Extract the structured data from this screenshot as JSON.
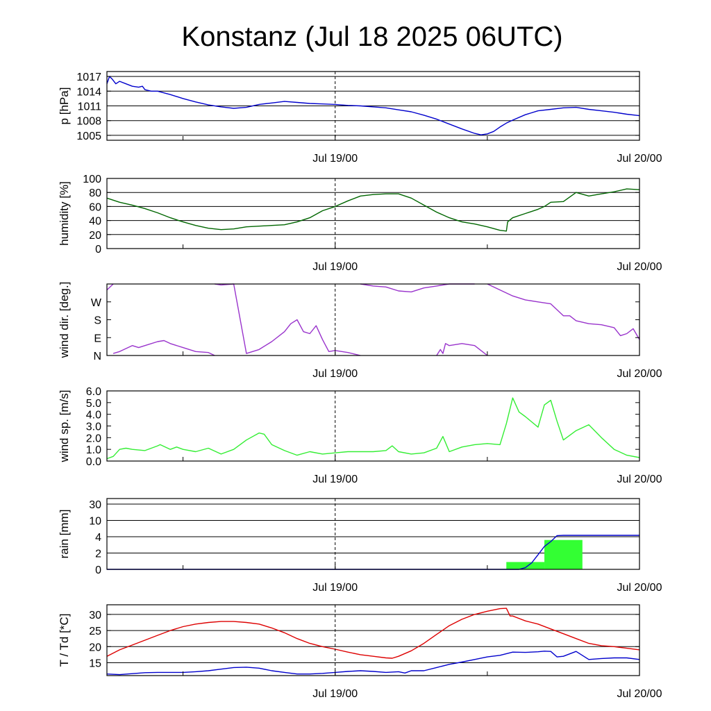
{
  "title": "Konstanz (Jul 18 2025 06UTC)",
  "chart_data": [
    {
      "type": "line",
      "ylabel": "p [hPa]",
      "x_range": [
        0,
        42
      ],
      "x_ticks": [
        {
          "x": 18,
          "label": "Jul 19/00"
        },
        {
          "x": 42,
          "label": "Jul 20/00"
        }
      ],
      "minor_x_ticks": [
        6,
        30
      ],
      "divider_x": 18,
      "ylim": [
        1004,
        1018
      ],
      "y_ticks": [
        1005,
        1008,
        1011,
        1014,
        1017
      ],
      "grid": true,
      "series": [
        {
          "color": "#0000cc",
          "x": [
            0,
            0.2,
            0.4,
            0.7,
            1,
            1.5,
            2,
            2.5,
            2.8,
            3,
            3.5,
            4,
            5,
            6,
            7,
            8,
            9,
            10,
            11,
            12,
            13,
            14,
            15,
            16,
            17,
            18,
            19,
            20,
            21,
            22,
            23,
            24,
            25,
            26,
            27,
            28,
            29,
            29.5,
            30,
            30.5,
            31,
            31.5,
            32,
            33,
            34,
            35,
            36,
            37,
            38,
            39,
            40,
            41,
            42
          ],
          "values": [
            1015.5,
            1017,
            1016.5,
            1015.5,
            1016,
            1015.5,
            1015,
            1014.8,
            1015,
            1014.3,
            1014,
            1014,
            1013.3,
            1012.5,
            1011.8,
            1011.2,
            1010.8,
            1010.5,
            1010.7,
            1011.3,
            1011.6,
            1011.9,
            1011.7,
            1011.5,
            1011.4,
            1011.3,
            1011.1,
            1011,
            1010.8,
            1010.6,
            1010.2,
            1009.8,
            1009.1,
            1008.3,
            1007.3,
            1006.3,
            1005.4,
            1005.1,
            1005.3,
            1005.8,
            1006.7,
            1007.5,
            1008.1,
            1009.2,
            1010,
            1010.3,
            1010.6,
            1010.7,
            1010.3,
            1010,
            1009.7,
            1009.3,
            1009.0
          ]
        }
      ]
    },
    {
      "type": "line",
      "ylabel": "humidity [%]",
      "x_range": [
        0,
        42
      ],
      "x_ticks": [
        {
          "x": 18,
          "label": "Jul 19/00"
        },
        {
          "x": 42,
          "label": "Jul 20/00"
        }
      ],
      "minor_x_ticks": [
        6,
        30
      ],
      "divider_x": 18,
      "ylim": [
        0,
        100
      ],
      "y_ticks": [
        0,
        20,
        40,
        60,
        80,
        100
      ],
      "grid": true,
      "series": [
        {
          "color": "#006600",
          "x": [
            0,
            1,
            2,
            3,
            4,
            5,
            6,
            7,
            8,
            9,
            10,
            11,
            12,
            13,
            14,
            15,
            16,
            17,
            18,
            19,
            20,
            21,
            22,
            23,
            24,
            25,
            26,
            27,
            28,
            29,
            30,
            31,
            31.5,
            31.6,
            32,
            33,
            34,
            34.5,
            35,
            36,
            37,
            38,
            39,
            40,
            41,
            42
          ],
          "values": [
            72,
            66,
            62,
            57,
            51,
            44,
            38,
            33,
            29,
            27,
            28,
            31,
            32,
            33,
            34,
            38,
            44,
            54,
            60,
            68,
            75,
            77,
            78,
            78,
            72,
            62,
            52,
            44,
            38,
            35,
            31,
            26,
            25,
            38,
            44,
            50,
            56,
            60,
            66,
            67,
            80,
            75,
            78,
            81,
            85,
            84
          ]
        }
      ]
    },
    {
      "type": "line",
      "ylabel": "wind dir. [deg.]",
      "x_range": [
        0,
        42
      ],
      "x_ticks": [
        {
          "x": 18,
          "label": "Jul 19/00"
        },
        {
          "x": 42,
          "label": "Jul 20/00"
        }
      ],
      "minor_x_ticks": [
        6,
        30
      ],
      "divider_x": 18,
      "ylim": [
        0,
        360
      ],
      "y_ticks": [
        0,
        90,
        180,
        270
      ],
      "y_tick_labels": [
        "N",
        "E",
        "S",
        "W"
      ],
      "grid": false,
      "series": [
        {
          "color": "#9933cc",
          "segments": [
            {
              "x": [
                0,
                0.25,
                0.5
              ],
              "values": [
                330,
                345,
                360
              ]
            },
            {
              "x": [
                0.5,
                1,
                2,
                2.5,
                3,
                4,
                4.5,
                5,
                6,
                7,
                8,
                8.5
              ],
              "values": [
                10,
                20,
                50,
                40,
                50,
                70,
                75,
                60,
                40,
                20,
                15,
                0
              ]
            },
            {
              "x": [
                8.5,
                9
              ],
              "values": [
                360,
                355
              ]
            },
            {
              "x": [
                9,
                10,
                11,
                12,
                13,
                14,
                14.5,
                15,
                15.5,
                16,
                16.5,
                17,
                17.5,
                18,
                19,
                20
              ],
              "values": [
                355,
                360,
                10,
                30,
                70,
                120,
                160,
                180,
                120,
                110,
                150,
                80,
                20,
                25,
                15,
                0
              ]
            },
            {
              "x": [
                20,
                21,
                22,
                23,
                24,
                25,
                26,
                27,
                28,
                29
              ],
              "values": [
                360,
                350,
                345,
                325,
                320,
                340,
                350,
                360,
                360,
                360
              ]
            },
            {
              "x": [
                26,
                26.3,
                26.5,
                26.7,
                27,
                28,
                29,
                30
              ],
              "values": [
                0,
                30,
                10,
                60,
                50,
                60,
                50,
                0
              ]
            },
            {
              "x": [
                30,
                31,
                32,
                33,
                34,
                35,
                36,
                36.5,
                37,
                38,
                39,
                40,
                40.5,
                41,
                41.5,
                42
              ],
              "values": [
                360,
                330,
                300,
                280,
                270,
                260,
                200,
                200,
                175,
                160,
                155,
                140,
                100,
                110,
                135,
                80
              ]
            }
          ]
        }
      ]
    },
    {
      "type": "line",
      "ylabel": "wind sp. [m/s]",
      "x_range": [
        0,
        42
      ],
      "x_ticks": [
        {
          "x": 18,
          "label": "Jul 19/00"
        },
        {
          "x": 42,
          "label": "Jul 20/00"
        }
      ],
      "minor_x_ticks": [
        6,
        30
      ],
      "divider_x": 18,
      "ylim": [
        0,
        6.0
      ],
      "y_ticks": [
        0.0,
        1.0,
        2.0,
        3.0,
        4.0,
        5.0,
        6.0
      ],
      "y_tick_labels": [
        "0.0",
        "1.0",
        "2.0",
        "3.0",
        "4.0",
        "5.0",
        "6.0"
      ],
      "grid": false,
      "series": [
        {
          "color": "#33ee33",
          "x": [
            0,
            0.5,
            1,
            1.5,
            2,
            3,
            4,
            4.2,
            5,
            5.5,
            6,
            7,
            8,
            9,
            10,
            11,
            12,
            12.4,
            13,
            14,
            15,
            16,
            17,
            18,
            19,
            20,
            21,
            22,
            22.5,
            23,
            24,
            25,
            26,
            26.5,
            27,
            28,
            29,
            30,
            31,
            31.5,
            32,
            32.5,
            33,
            34,
            34.5,
            35,
            35.5,
            36,
            37,
            38,
            39,
            40,
            41,
            42
          ],
          "values": [
            0.2,
            0.4,
            1.0,
            1.1,
            1.0,
            0.9,
            1.3,
            1.4,
            1.0,
            1.2,
            1.0,
            0.8,
            1.1,
            0.6,
            1.0,
            1.8,
            2.4,
            2.3,
            1.4,
            0.9,
            0.5,
            0.8,
            0.6,
            0.7,
            0.8,
            0.8,
            0.8,
            0.9,
            1.3,
            0.8,
            0.6,
            0.7,
            1.1,
            2.1,
            0.8,
            1.2,
            1.4,
            1.5,
            1.4,
            3.2,
            5.4,
            4.2,
            3.8,
            2.9,
            4.8,
            5.2,
            3.4,
            1.8,
            2.6,
            3.1,
            2.0,
            1.0,
            0.5,
            0.3
          ]
        }
      ]
    },
    {
      "type": "bar",
      "ylabel": "rain [mm]",
      "x_range": [
        0,
        42
      ],
      "x_ticks": [
        {
          "x": 18,
          "label": "Jul 19/00"
        },
        {
          "x": 42,
          "label": "Jul 20/00"
        }
      ],
      "minor_x_ticks": [
        6,
        30
      ],
      "divider_x": 18,
      "y_ticks": [
        0,
        2,
        4,
        10,
        30
      ],
      "y_scale": "nonlinear",
      "grid": true,
      "bars": [
        {
          "x0": 31.5,
          "x1": 34.5,
          "value": 0.9,
          "color": "#33ff33"
        },
        {
          "x0": 34.5,
          "x1": 37.5,
          "value": 3.6,
          "color": "#33ff33"
        }
      ],
      "series": [
        {
          "color": "#0000cc",
          "name": "accumulated",
          "x": [
            0,
            32.5,
            33,
            33.5,
            34,
            34.5,
            35,
            35.5,
            36,
            42
          ],
          "values": [
            0,
            0,
            0.2,
            0.8,
            1.8,
            2.8,
            3.4,
            4.4,
            4.5,
            4.5
          ]
        }
      ]
    },
    {
      "type": "line",
      "ylabel": "T / Td [*C]",
      "x_range": [
        0,
        42
      ],
      "x_ticks": [
        {
          "x": 18,
          "label": "Jul 19/00"
        },
        {
          "x": 42,
          "label": "Jul 20/00"
        }
      ],
      "minor_x_ticks": [
        6,
        30
      ],
      "divider_x": 18,
      "ylim": [
        11,
        33
      ],
      "y_ticks": [
        15,
        20,
        25,
        30
      ],
      "grid": true,
      "series": [
        {
          "color": "#dd0000",
          "x": [
            0,
            1,
            2,
            3,
            4,
            5,
            6,
            7,
            8,
            9,
            10,
            11,
            12,
            13,
            14,
            15,
            16,
            17,
            18,
            19,
            20,
            21,
            22,
            22.5,
            23,
            24,
            25,
            26,
            27,
            28,
            29,
            30,
            31,
            31.5,
            31.8,
            32,
            33,
            34,
            35,
            36,
            37,
            38,
            39,
            40,
            41,
            42
          ],
          "values": [
            17,
            19,
            20.5,
            22,
            23.5,
            25,
            26.2,
            27,
            27.5,
            27.8,
            27.8,
            27.5,
            27,
            25.8,
            24.3,
            22.5,
            21,
            20,
            19.2,
            18.3,
            17.5,
            17,
            16.5,
            16.4,
            17,
            18.7,
            21,
            23.8,
            26.5,
            28.5,
            30,
            31,
            31.8,
            31.9,
            29.5,
            29.5,
            28,
            27,
            25.5,
            24,
            22.5,
            21,
            20.3,
            20,
            19.5,
            19
          ]
        },
        {
          "color": "#0000cc",
          "x": [
            0,
            1,
            2,
            3,
            4,
            5,
            6,
            7,
            8,
            9,
            10,
            11,
            12,
            13,
            14,
            15,
            16,
            17,
            18,
            19,
            20,
            21,
            22,
            23,
            23.5,
            24,
            25,
            26,
            27,
            28,
            29,
            30,
            31,
            32,
            33,
            34,
            34.5,
            35,
            35.5,
            36,
            37,
            38,
            39,
            40,
            41,
            42
          ],
          "values": [
            11.5,
            11.3,
            11.6,
            11.9,
            12,
            12,
            12,
            12.2,
            12.5,
            13,
            13.5,
            13.6,
            13.3,
            12.5,
            12,
            11.5,
            11.5,
            11.7,
            12,
            12.3,
            12.5,
            12.3,
            12,
            12.2,
            11.8,
            12.5,
            12.5,
            13.5,
            14.5,
            15.2,
            16,
            16.8,
            17.3,
            18.3,
            18.2,
            18.4,
            18.6,
            18.5,
            16.8,
            17,
            18.5,
            16,
            16.3,
            16.5,
            16.5,
            16
          ]
        }
      ]
    }
  ]
}
